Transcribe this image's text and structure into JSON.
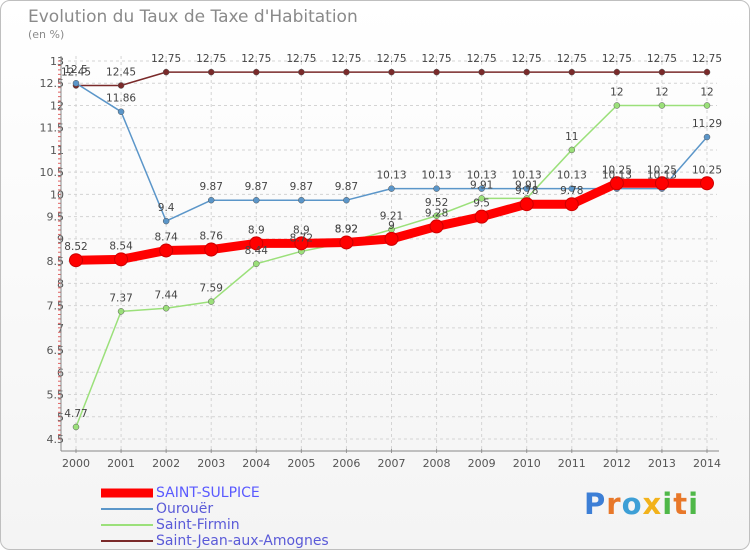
{
  "chart_data": {
    "type": "line",
    "title": "Evolution du Taux de Taxe d'Habitation",
    "subtitle": "(en %)",
    "xlabel": "",
    "ylabel": "",
    "x": [
      "2000",
      "2001",
      "2002",
      "2003",
      "2004",
      "2005",
      "2006",
      "2007",
      "2008",
      "2009",
      "2010",
      "2011",
      "2012",
      "2013",
      "2014"
    ],
    "ylim": [
      4.5,
      13
    ],
    "yticks": [
      "4.5",
      "5",
      "5.5",
      "6",
      "6.5",
      "7",
      "7.5",
      "8",
      "8.5",
      "9",
      "9.5",
      "10",
      "10.5",
      "11",
      "11.5",
      "12",
      "12.5",
      "13"
    ],
    "grid": true,
    "legend_position": "bottom-left",
    "series": [
      {
        "name": "SAINT-SULPICE",
        "color": "#ff0000",
        "values": [
          8.52,
          8.54,
          8.74,
          8.76,
          8.9,
          8.9,
          8.92,
          9.0,
          9.28,
          9.5,
          9.78,
          9.78,
          10.25,
          10.25,
          10.25
        ],
        "labels": [
          "8.52",
          "8.54",
          "8.74",
          "8.76",
          "8.9",
          "8.9",
          "8.92",
          "9",
          "9.28",
          "9.5",
          "9.78",
          "9.78",
          "10.25",
          "10.25",
          "10.25"
        ]
      },
      {
        "name": "Ourouër",
        "color": "#5b96c9",
        "values": [
          12.5,
          11.86,
          9.4,
          9.87,
          9.87,
          9.87,
          9.87,
          10.13,
          10.13,
          10.13,
          10.13,
          10.13,
          10.13,
          10.13,
          11.29
        ],
        "labels": [
          "12.5",
          "11.86",
          "9.4",
          "9.87",
          "9.87",
          "9.87",
          "9.87",
          "10.13",
          "10.13",
          "10.13",
          "10.13",
          "10.13",
          "10.13",
          "10.13",
          "11.29"
        ]
      },
      {
        "name": "Saint-Firmin",
        "color": "#9be07a",
        "values": [
          4.77,
          7.37,
          7.44,
          7.59,
          8.44,
          8.72,
          8.92,
          9.21,
          9.52,
          9.91,
          9.91,
          11.0,
          12.0,
          12.0,
          12.0
        ],
        "labels": [
          "4.77",
          "7.37",
          "7.44",
          "7.59",
          "8.44",
          "8.72",
          "8.92",
          "9.21",
          "9.52",
          "9.91",
          "9.91",
          "11",
          "12",
          "12",
          "12"
        ]
      },
      {
        "name": "Saint-Jean-aux-Amognes",
        "color": "#7a2a2a",
        "values": [
          12.45,
          12.45,
          12.75,
          12.75,
          12.75,
          12.75,
          12.75,
          12.75,
          12.75,
          12.75,
          12.75,
          12.75,
          12.75,
          12.75,
          12.75
        ],
        "labels": [
          "12.45",
          "12.45",
          "12.75",
          "12.75",
          "12.75",
          "12.75",
          "12.75",
          "12.75",
          "12.75",
          "12.75",
          "12.75",
          "12.75",
          "12.75",
          "12.75",
          "12.75"
        ]
      }
    ]
  },
  "brand": {
    "name": "Proxiti",
    "letters": [
      "P",
      "r",
      "o",
      "x",
      "i",
      "t",
      "i"
    ],
    "colors": [
      "#3d7fd6",
      "#e8782a",
      "#3d9fd6",
      "#f2b21b",
      "#4fb848",
      "#e8782a",
      "#4fb848"
    ]
  }
}
